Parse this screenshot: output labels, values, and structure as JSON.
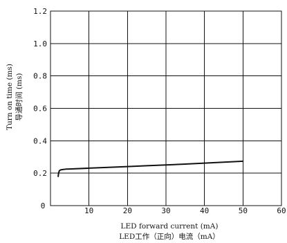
{
  "chart_data": {
    "type": "line",
    "title": "",
    "xlabel": "LED forward current (mA)",
    "xlabel_cn": "LED工作（正向）电流（mA）",
    "ylabel": "Turn on time (ms)",
    "ylabel_cn": "导通时间 (ms)",
    "xlim": [
      0,
      60
    ],
    "ylim": [
      0,
      1.2
    ],
    "x_ticks": [
      0,
      10,
      20,
      30,
      40,
      50,
      60
    ],
    "x_tick_labels": [
      "0",
      "10",
      "20",
      "30",
      "40",
      "50",
      "60"
    ],
    "y_ticks": [
      0.2,
      0.4,
      0.6,
      0.8,
      1.0,
      1.2
    ],
    "y_tick_labels": [
      "0.2",
      "0.4",
      "0.6",
      "0.8",
      "1.0",
      "1.2"
    ],
    "origin_label": "0",
    "grid": true,
    "series": [
      {
        "color": "#111111",
        "x": [
          2,
          2.1,
          2.3,
          2.6,
          3,
          4,
          5,
          10,
          15,
          20,
          25,
          30,
          35,
          40,
          45,
          50
        ],
        "y": [
          0.18,
          0.2,
          0.215,
          0.22,
          0.222,
          0.225,
          0.226,
          0.231,
          0.236,
          0.241,
          0.246,
          0.251,
          0.256,
          0.262,
          0.268,
          0.274
        ]
      }
    ]
  }
}
